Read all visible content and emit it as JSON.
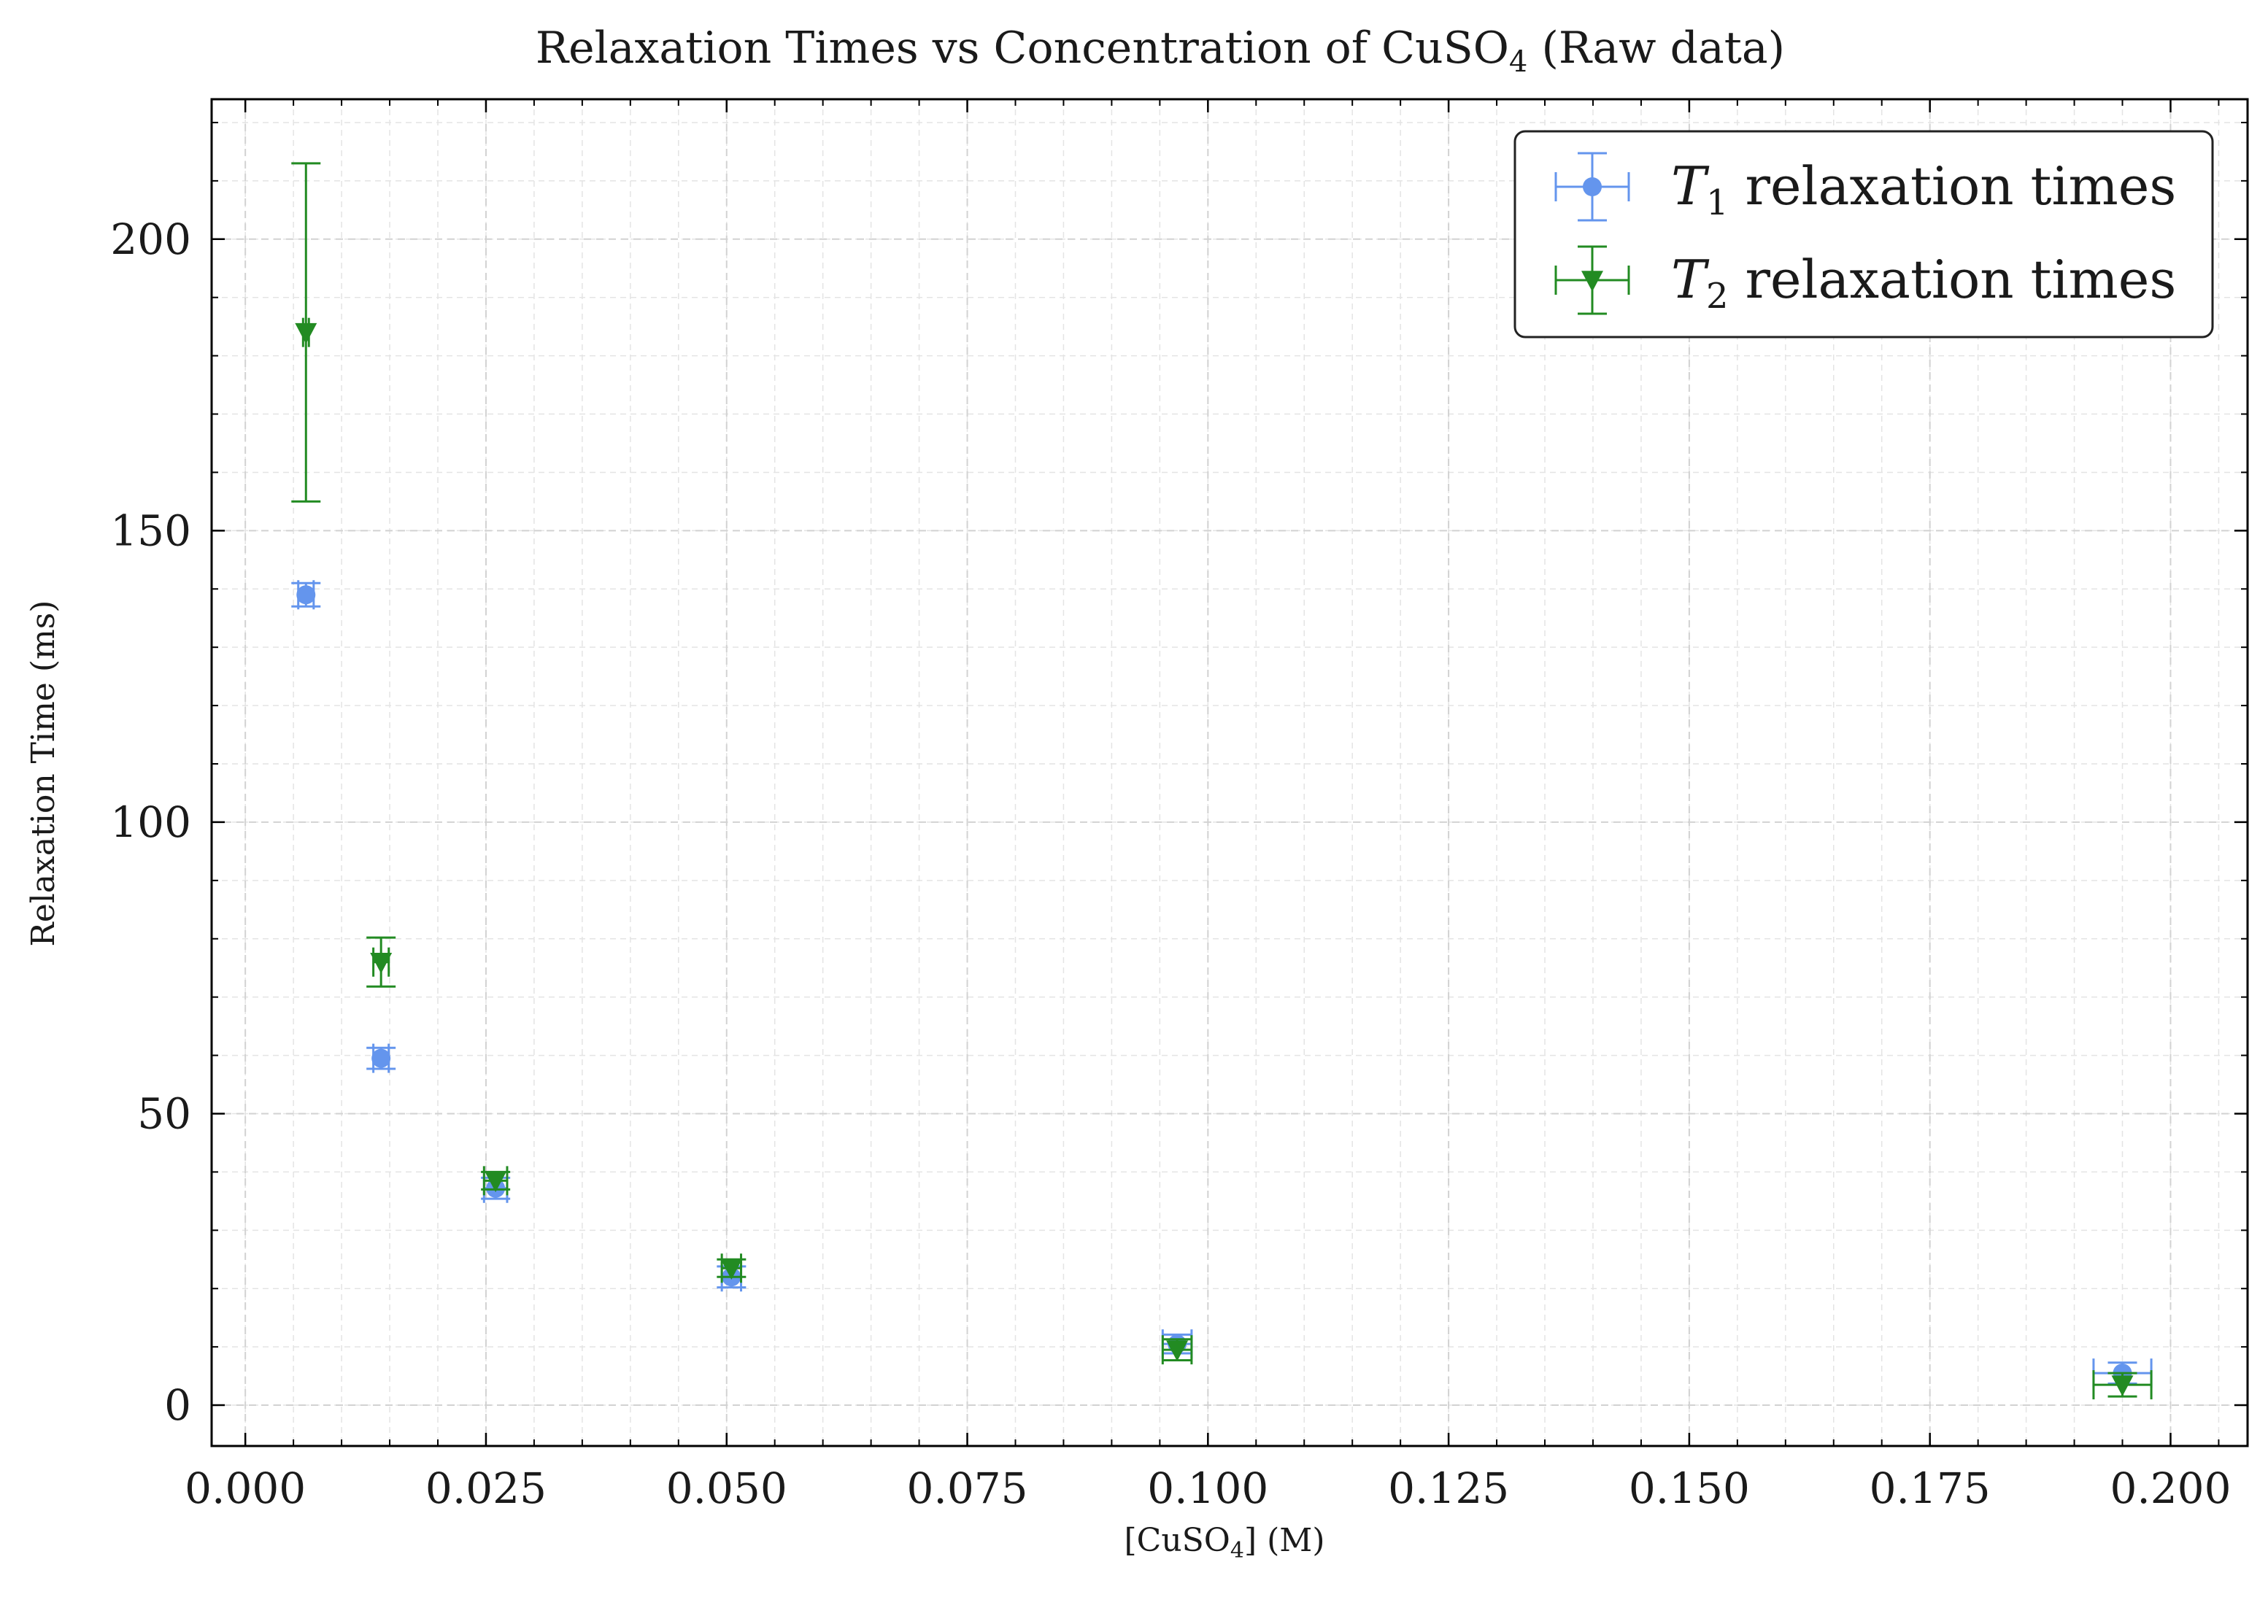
{
  "chart_data": {
    "type": "scatter",
    "title": {
      "main": "Relaxation Times vs Concentration of CuSO",
      "sub": "4",
      "tail": " (Raw data)"
    },
    "xlabel": {
      "main": "[CuSO",
      "sub": "4",
      "tail": "] (M)"
    },
    "ylabel": "Relaxation Time (ms)",
    "xlim": [
      -0.0035,
      0.208
    ],
    "ylim": [
      -7,
      224
    ],
    "x_ticks": [
      0.0,
      0.025,
      0.05,
      0.075,
      0.1,
      0.125,
      0.15,
      0.175,
      0.2
    ],
    "x_tick_labels": [
      "0.000",
      "0.025",
      "0.050",
      "0.075",
      "0.100",
      "0.125",
      "0.150",
      "0.175",
      "0.200"
    ],
    "y_ticks": [
      0,
      50,
      100,
      150,
      200
    ],
    "y_tick_labels": [
      "0",
      "50",
      "100",
      "150",
      "200"
    ],
    "x_minor_step": 0.005,
    "y_minor_step": 10,
    "grid": true,
    "legend_position": "top-right",
    "series": [
      {
        "name": "relaxation times",
        "name_symbol": "T",
        "name_sub": "1",
        "marker": "circle",
        "color": "#6495ED",
        "points": [
          {
            "x": 0.0063,
            "y": 139.0,
            "xerr": 0.0008,
            "yerr": 2.0
          },
          {
            "x": 0.0141,
            "y": 59.5,
            "xerr": 0.0008,
            "yerr": 1.8
          },
          {
            "x": 0.026,
            "y": 37.2,
            "xerr": 0.0012,
            "yerr": 1.8
          },
          {
            "x": 0.0505,
            "y": 22.0,
            "xerr": 0.001,
            "yerr": 1.8
          },
          {
            "x": 0.0968,
            "y": 10.5,
            "xerr": 0.0015,
            "yerr": 1.6
          },
          {
            "x": 0.195,
            "y": 5.5,
            "xerr": 0.003,
            "yerr": 1.8
          }
        ]
      },
      {
        "name": "relaxation times",
        "name_symbol": "T",
        "name_sub": "2",
        "marker": "triangle-down",
        "color": "#228B22",
        "points": [
          {
            "x": 0.0063,
            "y": 184.0,
            "xerr": 0.0003,
            "yerr": 29.0
          },
          {
            "x": 0.0141,
            "y": 76.0,
            "xerr": 0.0008,
            "yerr": 4.2
          },
          {
            "x": 0.026,
            "y": 38.5,
            "xerr": 0.0012,
            "yerr": 1.5
          },
          {
            "x": 0.0505,
            "y": 23.5,
            "xerr": 0.001,
            "yerr": 1.5
          },
          {
            "x": 0.0968,
            "y": 9.5,
            "xerr": 0.0015,
            "yerr": 1.8
          },
          {
            "x": 0.195,
            "y": 3.5,
            "xerr": 0.003,
            "yerr": 2.0
          }
        ]
      }
    ]
  }
}
